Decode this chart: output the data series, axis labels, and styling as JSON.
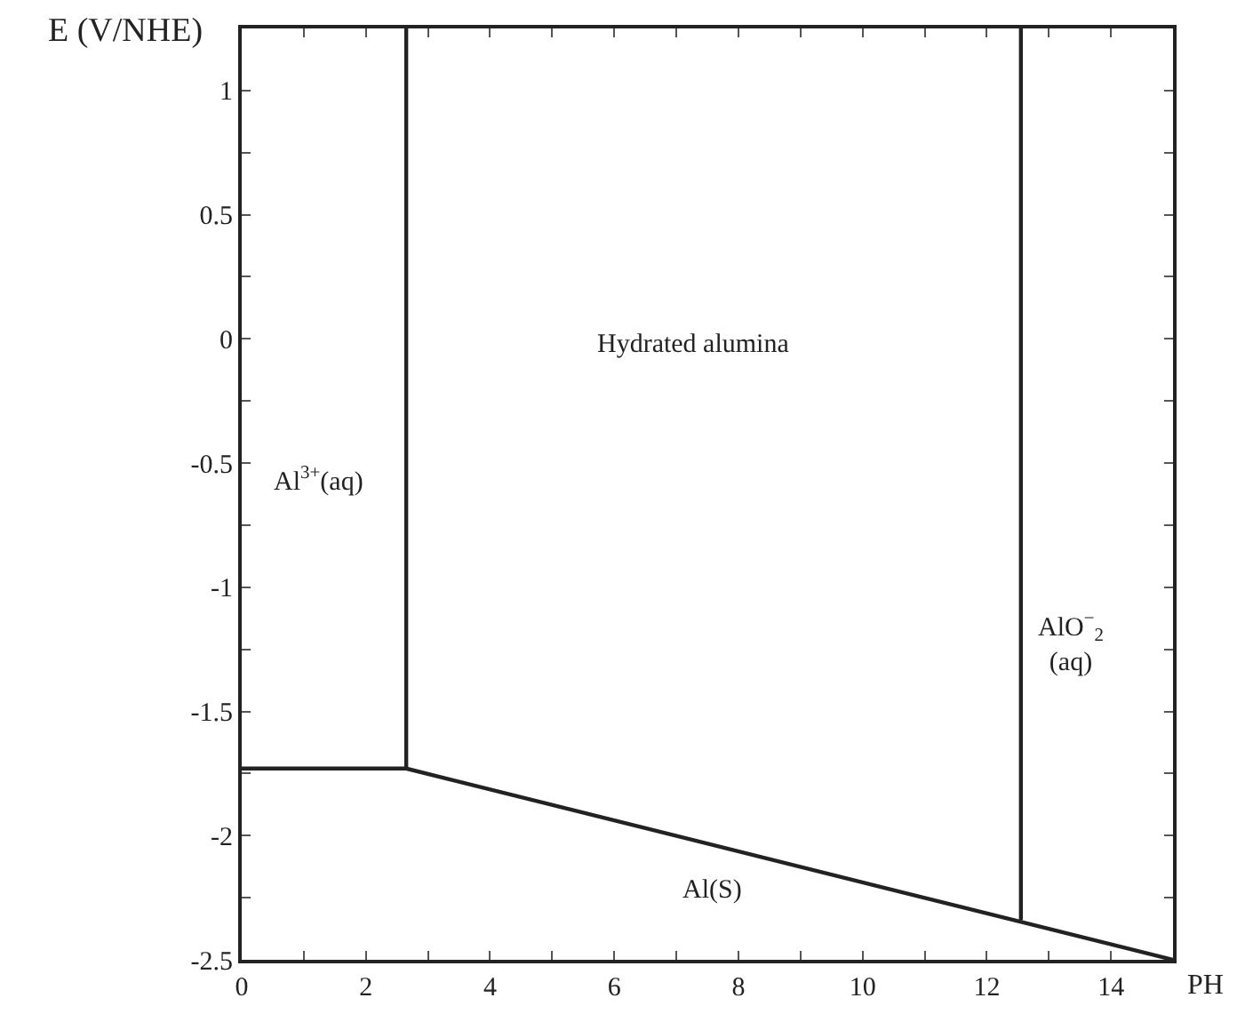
{
  "chart_data": {
    "type": "line",
    "xlabel": "PH",
    "ylabel": "E (V/NHE)",
    "series": [
      {
        "color": "#222222",
        "x": [
          0,
          2.65,
          15
        ],
        "values": [
          -1.73,
          -1.73,
          -2.5
        ]
      },
      {
        "color": "#222222",
        "x": [
          2.65,
          2.65
        ],
        "values": [
          -1.73,
          1.25
        ]
      },
      {
        "color": "#222222",
        "x": [
          12.55,
          12.55
        ],
        "values": [
          -2.34,
          1.25
        ]
      }
    ],
    "annotations": [
      "Hydrated alumina",
      "Al$^{3+}$(aq)",
      "AlO$^{−}$$_{2}$\n(aq)",
      "Al(S)"
    ],
    "xlim": [
      0,
      15
    ],
    "ylim": [
      -2.5,
      1.25
    ],
    "xticks": [
      0,
      {
        "value": 1,
        "label": null
      },
      2,
      {
        "value": 3,
        "label": null
      },
      4,
      {
        "value": 5,
        "label": null
      },
      6,
      {
        "value": 7,
        "label": null
      },
      8,
      {
        "value": 9,
        "label": null
      },
      10,
      {
        "value": 11,
        "label": null
      },
      12,
      {
        "value": 13,
        "label": null
      },
      14
    ],
    "yticks": [
      -2.5,
      {
        "value": -2.25,
        "label": null
      },
      -2,
      {
        "value": -1.75,
        "label": null
      },
      -1.5,
      {
        "value": -1.25,
        "label": null
      },
      -1,
      {
        "value": -0.75,
        "label": null
      },
      -0.5,
      {
        "value": -0.25,
        "label": null
      },
      0,
      {
        "value": 0.25,
        "label": null
      },
      0.5,
      {
        "value": 0.75,
        "label": null
      },
      1
    ],
    "marker": "none",
    "line_style": "solid"
  }
}
